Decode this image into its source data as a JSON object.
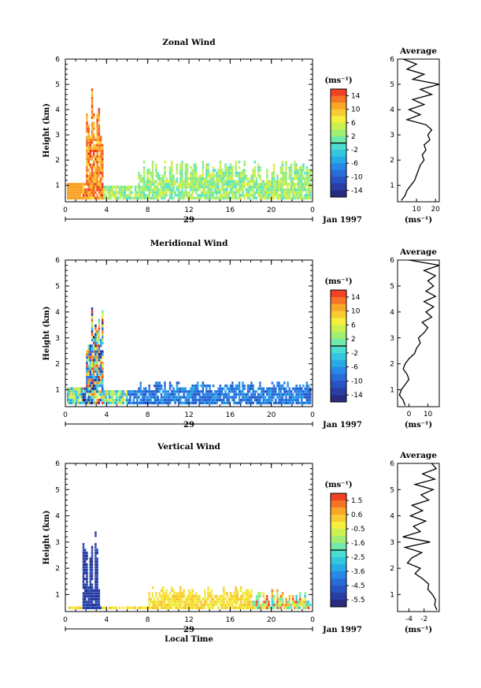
{
  "figure": {
    "date_label": "Jan 1997",
    "day_label": "29",
    "xlabel_bottom": "Local Time"
  },
  "chart_data": [
    {
      "type": "heatmap",
      "title": "Zonal Wind",
      "xlabel": "",
      "ylabel": "Height (km)",
      "x_ticks": [
        "0",
        "4",
        "8",
        "12",
        "16",
        "20",
        "0"
      ],
      "y_ticks": [
        "1",
        "2",
        "3",
        "4",
        "5",
        "6"
      ],
      "x_range": [
        0,
        24
      ],
      "y_range": [
        0.35,
        6
      ],
      "colorbar": {
        "unit": "(ms⁻¹)",
        "ticks": [
          "14",
          "10",
          "6",
          "2",
          "-2",
          "-6",
          "-10",
          "-14"
        ],
        "range": [
          -16,
          16
        ]
      },
      "average_profile": {
        "title": "Average",
        "xlabel": "(ms⁻¹)",
        "x_ticks": [
          "10",
          "20"
        ],
        "xlim": [
          0,
          22
        ],
        "heights": [
          0.4,
          0.6,
          0.8,
          1.0,
          1.2,
          1.4,
          1.6,
          1.8,
          2.0,
          2.2,
          2.4,
          2.6,
          2.8,
          3.0,
          3.2,
          3.4,
          3.6,
          3.8,
          4.0,
          4.2,
          4.4,
          4.6,
          4.8,
          5.0,
          5.2,
          5.4,
          5.6,
          5.8,
          6.0
        ],
        "values": [
          2,
          4,
          5,
          7,
          9,
          10,
          11,
          12,
          14,
          13,
          15,
          14,
          17,
          16,
          18,
          15,
          5,
          12,
          6,
          14,
          8,
          18,
          12,
          22,
          8,
          14,
          5,
          10,
          3
        ]
      }
    },
    {
      "type": "heatmap",
      "title": "Meridional Wind",
      "xlabel": "",
      "ylabel": "Height (km)",
      "x_ticks": [
        "0",
        "4",
        "8",
        "12",
        "16",
        "20",
        "0"
      ],
      "y_ticks": [
        "1",
        "2",
        "3",
        "4",
        "5",
        "6"
      ],
      "x_range": [
        0,
        24
      ],
      "y_range": [
        0.35,
        6
      ],
      "colorbar": {
        "unit": "(ms⁻¹)",
        "ticks": [
          "14",
          "10",
          "6",
          "2",
          "-2",
          "-6",
          "-10",
          "-14"
        ],
        "range": [
          -16,
          16
        ]
      },
      "average_profile": {
        "title": "Average",
        "xlabel": "(ms⁻¹)",
        "x_ticks": [
          "0",
          "10"
        ],
        "xlim": [
          -6,
          16
        ],
        "heights": [
          0.4,
          0.6,
          0.8,
          1.0,
          1.2,
          1.4,
          1.6,
          1.8,
          2.0,
          2.2,
          2.4,
          2.6,
          2.8,
          3.0,
          3.2,
          3.4,
          3.6,
          3.8,
          4.0,
          4.2,
          4.4,
          4.6,
          4.8,
          5.0,
          5.2,
          5.4,
          5.6,
          5.8,
          6.0
        ],
        "values": [
          -2,
          -3,
          -5,
          -4,
          -2,
          0,
          -1,
          -3,
          -2,
          0,
          3,
          4,
          6,
          5,
          8,
          10,
          7,
          12,
          9,
          13,
          8,
          14,
          9,
          13,
          10,
          14,
          8,
          16,
          0
        ]
      }
    },
    {
      "type": "heatmap",
      "title": "Vertical Wind",
      "xlabel": "Local Time",
      "ylabel": "Height (km)",
      "x_ticks": [
        "0",
        "4",
        "8",
        "12",
        "16",
        "20",
        "0"
      ],
      "y_ticks": [
        "1",
        "2",
        "3",
        "4",
        "5",
        "6"
      ],
      "x_range": [
        0,
        24
      ],
      "y_range": [
        0.35,
        6
      ],
      "colorbar": {
        "unit": "(ms⁻¹)",
        "ticks": [
          "1.5",
          "0.6",
          "-0.5",
          "-1.6",
          "-2.5",
          "-3.6",
          "-4.5",
          "-5.5"
        ],
        "range": [
          -6,
          2
        ]
      },
      "average_profile": {
        "title": "Average",
        "xlabel": "(ms⁻¹)",
        "x_ticks": [
          "-4",
          "-2"
        ],
        "xlim": [
          -5.5,
          0
        ],
        "heights": [
          0.4,
          0.6,
          0.8,
          1.0,
          1.2,
          1.4,
          1.6,
          1.8,
          2.0,
          2.2,
          2.4,
          2.6,
          2.8,
          3.0,
          3.2,
          3.4,
          3.6,
          3.8,
          4.0,
          4.2,
          4.4,
          4.6,
          4.8,
          5.0,
          5.2,
          5.4,
          5.6,
          5.8,
          6.0
        ],
        "values": [
          -0.3,
          -0.6,
          -0.5,
          -0.9,
          -1.5,
          -1.4,
          -2.2,
          -3.2,
          -2.5,
          -4.2,
          -3.6,
          -2.3,
          -4.5,
          -1.2,
          -4.8,
          -2.5,
          -3.4,
          -1.8,
          -3.8,
          -2.2,
          -3.6,
          -1.4,
          -2.4,
          -0.8,
          -3.2,
          -0.6,
          -2.2,
          -0.4,
          -1.0
        ]
      }
    }
  ]
}
